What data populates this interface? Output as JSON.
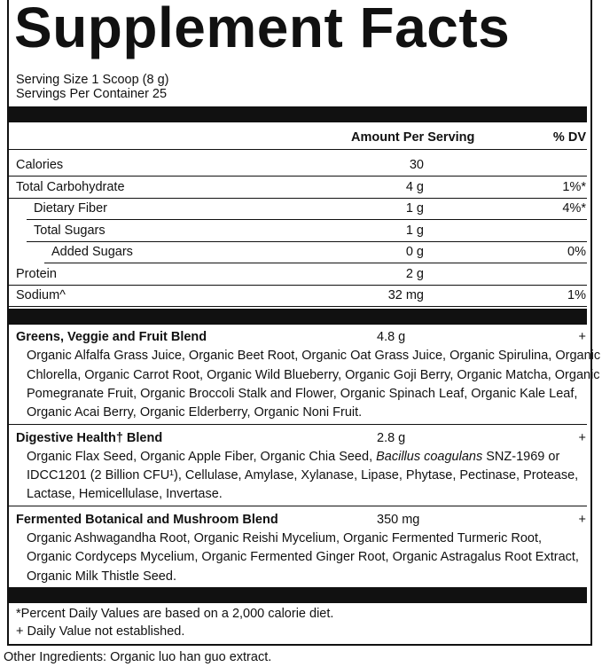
{
  "header": {
    "title": "Supplement Facts",
    "serving_size": "Serving Size 1 Scoop (8 g)",
    "servings_per_container": "Servings Per Container 25"
  },
  "table": {
    "columns": [
      "Amount Per Serving",
      "% DV"
    ],
    "rows": [
      {
        "label": "Calories",
        "amount": "30",
        "indent": 0
      },
      {
        "label": "Total Carbohydrate",
        "amount": "4 g",
        "dv": "1%*",
        "indent": 0
      },
      {
        "label": "Dietary Fiber",
        "amount": "1 g",
        "dv": "4%*",
        "indent": 1
      },
      {
        "label": "Total Sugars",
        "amount": "1 g",
        "indent": 1
      },
      {
        "label": "Added Sugars",
        "amount": "0 g",
        "dv": "0%",
        "indent": 2
      },
      {
        "label": "Protein",
        "amount": "2 g",
        "indent": 0
      },
      {
        "label": "Sodium^",
        "amount": "32 mg",
        "dv": "1%",
        "indent": 0
      }
    ]
  },
  "blends": [
    {
      "name": "Greens, Veggie and Fruit Blend",
      "amount": "4.8 g",
      "dv": "+",
      "lines": [
        [
          {
            "text": "Organic Alfalfa Grass Juice, Organic Beet Root, Organic Oat Grass Juice, Organic Spirulina, Organic"
          }
        ],
        [
          {
            "text": "Chlorella, Organic Carrot Root, Organic Wild Blueberry, Organic Goji Berry, Organic Matcha, Organic"
          }
        ],
        [
          {
            "text": "Pomegranate Fruit, Organic Broccoli Stalk and Flower, Organic Spinach Leaf, Organic Kale Leaf,"
          }
        ],
        [
          {
            "text": "Organic Acai Berry, Organic Elderberry, Organic Noni Fruit."
          }
        ]
      ]
    },
    {
      "name": "Digestive Health† Blend",
      "amount": "2.8 g",
      "dv": "+",
      "lines": [
        [
          {
            "text": "Organic Flax Seed, Organic Apple Fiber, Organic Chia Seed, "
          },
          {
            "text": "Bacillus coagulans",
            "italic": true
          },
          {
            "text": " SNZ-1969 or"
          }
        ],
        [
          {
            "text": "IDCC1201 (2 Billion CFU¹), Cellulase, Amylase, Xylanase, Lipase, Phytase, Pectinase, Protease,"
          }
        ],
        [
          {
            "text": "Lactase, Hemicellulase, Invertase."
          }
        ]
      ]
    },
    {
      "name": "Fermented Botanical and Mushroom Blend",
      "amount": "350 mg",
      "dv": "+",
      "lines": [
        [
          {
            "text": "Organic Ashwagandha Root, Organic Reishi Mycelium, Organic Fermented Turmeric Root,"
          }
        ],
        [
          {
            "text": "Organic Cordyceps Mycelium, Organic Fermented Ginger Root, Organic Astragalus Root Extract,"
          }
        ],
        [
          {
            "text": "Organic Milk Thistle Seed."
          }
        ]
      ]
    }
  ],
  "footnotes": [
    "*Percent Daily Values are based on a 2,000 calorie diet.",
    "+ Daily Value not established."
  ],
  "other_ingredients": "Other Ingredients: Organic luo han guo extract."
}
